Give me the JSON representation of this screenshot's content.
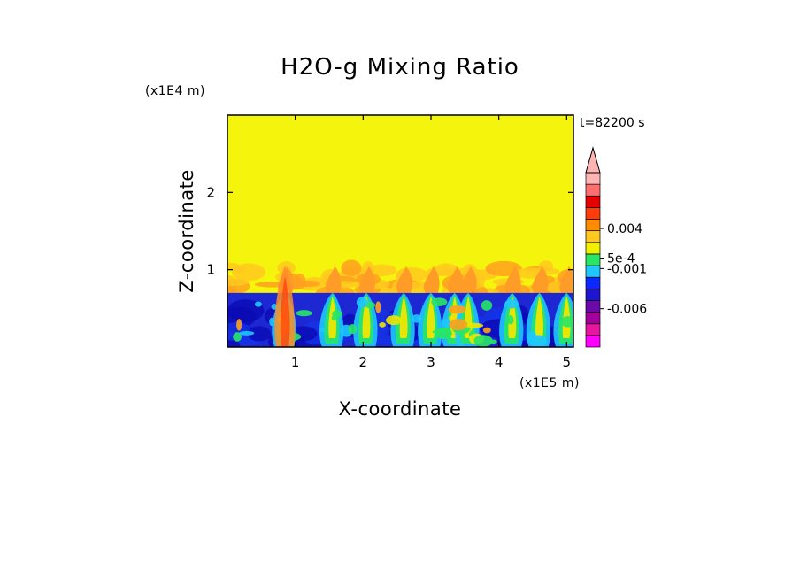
{
  "chart_data": {
    "type": "heatmap",
    "title": "H2O-g Mixing Ratio",
    "xlabel": "X-coordinate",
    "ylabel": "Z-coordinate",
    "x_unit": "(x1E5 m)",
    "y_unit": "(x1E4 m)",
    "time_label": "t=82200 s",
    "xlim": [
      0,
      5.1
    ],
    "ylim": [
      0,
      3.0
    ],
    "x_ticks": [
      "1",
      "2",
      "3",
      "4",
      "5"
    ],
    "x_tick_values": [
      1,
      2,
      3,
      4,
      5
    ],
    "y_ticks": [
      "1",
      "2"
    ],
    "y_tick_values": [
      1,
      2
    ],
    "regions": {
      "upper_layer": {
        "z_range": [
          1.05,
          3.0
        ],
        "level": "~0",
        "color": "#f4f40c"
      },
      "mixed_layer": {
        "z_range": [
          0.7,
          1.05
        ],
        "description": "orange/yellow plumes"
      },
      "lower_layer": {
        "z_range": [
          0,
          0.7
        ],
        "description": "blue/green turbulent field"
      },
      "plume_x_positions": [
        0.85,
        1.55,
        2.05,
        2.6,
        3.0,
        3.35,
        3.55,
        4.2,
        4.6,
        5.0
      ]
    },
    "colorbar": {
      "colors": [
        "#ff00ff",
        "#e8159e",
        "#a3009e",
        "#6a0aa8",
        "#1e14d2",
        "#0a28ff",
        "#1ec8ff",
        "#28e664",
        "#f0f000",
        "#ffc81e",
        "#ff8c00",
        "#ff3c0a",
        "#e60000",
        "#ff6e6e",
        "#ffb4b4"
      ],
      "labels": [
        "0.004",
        "5e-4",
        "-0.001",
        "-0.006"
      ],
      "label_positions": [
        0.68,
        0.51,
        0.45,
        0.22
      ],
      "extend": "max"
    }
  }
}
